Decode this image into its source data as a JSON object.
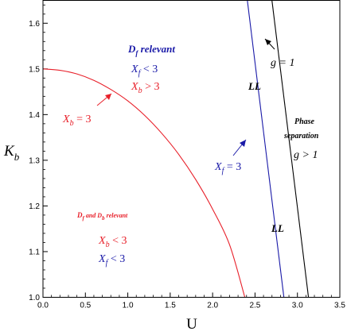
{
  "chart_data": {
    "type": "line",
    "xlabel": "U",
    "ylabel": "K",
    "ylabel_sub": "b",
    "xlim": [
      0.0,
      3.5
    ],
    "ylim": [
      1.0,
      1.65
    ],
    "x_ticks": [
      "0.0",
      "0.5",
      "1.0",
      "1.5",
      "2.0",
      "2.5",
      "3.0",
      "3.5"
    ],
    "y_ticks": [
      "1.0",
      "1.1",
      "1.2",
      "1.3",
      "1.4",
      "1.5",
      "1.6"
    ],
    "grid": false,
    "colors": {
      "xb_curve": "#e8202a",
      "xf_line": "#1a1aa8",
      "g_line": "#000000",
      "axis": "#000000"
    },
    "series": [
      {
        "name": "X_b = 3",
        "color": "#e8202a",
        "x": [
          0.0,
          0.2,
          0.4,
          0.6,
          0.8,
          1.0,
          1.2,
          1.4,
          1.6,
          1.8,
          2.0,
          2.2,
          2.38
        ],
        "y": [
          1.5,
          1.497,
          1.489,
          1.475,
          1.455,
          1.43,
          1.398,
          1.359,
          1.313,
          1.258,
          1.193,
          1.115,
          1.0
        ]
      },
      {
        "name": "X_f = 3",
        "color": "#1a1aa8",
        "x": [
          2.41,
          2.84
        ],
        "y": [
          1.65,
          1.0
        ]
      },
      {
        "name": "g = 1",
        "color": "#000000",
        "x": [
          2.7,
          3.13
        ],
        "y": [
          1.65,
          1.0
        ]
      }
    ],
    "annotations": {
      "df_relevant": "D",
      "df_relevant_sub": "f",
      "df_relevant_rest": " relevant",
      "xf_lt3_var": "X",
      "xf_lt3_sub": "f",
      "xf_lt3_rest": " < 3",
      "xb_gt3_var": "X",
      "xb_gt3_sub": "b",
      "xb_gt3_rest": " > 3",
      "xb_eq3_var": "X",
      "xb_eq3_sub": "b",
      "xb_eq3_rest": " = 3",
      "xf_eq3_var": "X",
      "xf_eq3_sub": "f",
      "xf_eq3_rest": " = 3",
      "ll_upper": "LL",
      "ll_lower": "LL",
      "g_eq1": "g = 1",
      "phase": "Phase",
      "separation": "separation",
      "g_gt1": "g > 1",
      "dfdb_d1": "D",
      "dfdb_s1": "f",
      "dfdb_mid": " and D",
      "dfdb_s2": "b",
      "dfdb_rest": " relevant",
      "xb_lt3_var": "X",
      "xb_lt3_sub": "b",
      "xb_lt3_rest": " < 3",
      "xf_lt3b_var": "X",
      "xf_lt3b_sub": "f",
      "xf_lt3b_rest": " < 3"
    }
  }
}
